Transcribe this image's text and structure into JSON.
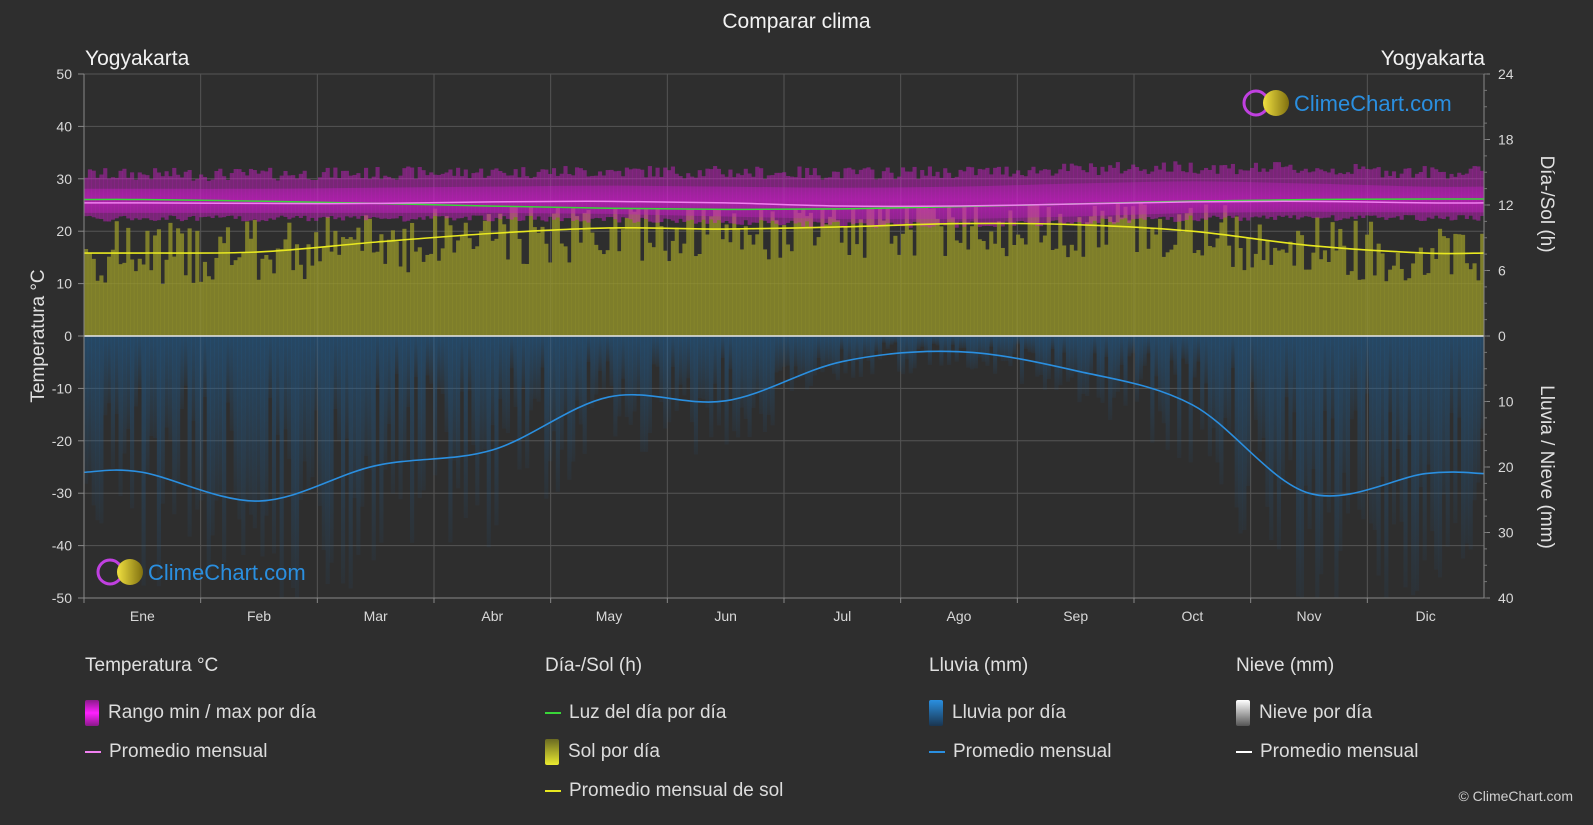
{
  "title": "Comparar clima",
  "location_left": "Yogyakarta",
  "location_right": "Yogyakarta",
  "axis_left_label": "Temperatura °C",
  "axis_right_top_label": "Día-/Sol (h)",
  "axis_right_bottom_label": "Lluvia / Nieve (mm)",
  "watermark": "ClimeChart.com",
  "copyright": "© ClimeChart.com",
  "colors": {
    "background": "#2e2e2e",
    "temp_range": "#d21ccf",
    "temp_avg": "#f080f0",
    "daylight": "#39d639",
    "sunshine_fill": "#9a9a2a",
    "sunshine_avg": "#e8e820",
    "rain_fill": "#1f5f96",
    "rain_avg": "#2a8fe0",
    "snow": "#ffffff",
    "brand": "#2a8fe0"
  },
  "legend": {
    "temperature": {
      "title": "Temperatura °C",
      "range": "Rango min / max por día",
      "avg": "Promedio mensual"
    },
    "sun": {
      "title": "Día-/Sol (h)",
      "daylight": "Luz del día por día",
      "sunshine": "Sol por día",
      "avg": "Promedio mensual de sol"
    },
    "rain": {
      "title": "Lluvia (mm)",
      "daily": "Lluvia por día",
      "avg": "Promedio mensual"
    },
    "snow": {
      "title": "Nieve (mm)",
      "daily": "Nieve por día",
      "avg": "Promedio mensual"
    }
  },
  "chart_data": {
    "type": "area",
    "categories": [
      "Ene",
      "Feb",
      "Mar",
      "Abr",
      "May",
      "Jun",
      "Jul",
      "Ago",
      "Sep",
      "Oct",
      "Nov",
      "Dic"
    ],
    "temp_axis": {
      "ylim": [
        -50,
        50
      ],
      "ticks": [
        50,
        40,
        30,
        20,
        10,
        0,
        -10,
        -20,
        -30,
        -40,
        -50
      ]
    },
    "sun_axis": {
      "ylim": [
        0,
        24
      ],
      "ticks": [
        24,
        18,
        12,
        6,
        0
      ]
    },
    "rain_axis": {
      "ylim": [
        0,
        40
      ],
      "ticks": [
        0,
        10,
        20,
        30,
        40
      ]
    },
    "series": [
      {
        "name": "Rango min / max por día",
        "unit": "°C",
        "min": [
          23.0,
          23.0,
          23.0,
          23.0,
          22.8,
          22.3,
          21.8,
          21.8,
          22.3,
          23.0,
          23.2,
          23.1
        ],
        "max": [
          29.6,
          29.6,
          29.8,
          30.0,
          30.2,
          30.0,
          29.8,
          30.0,
          30.6,
          31.0,
          30.6,
          30.0
        ]
      },
      {
        "name": "Promedio mensual",
        "unit": "°C",
        "values": [
          25.4,
          25.3,
          25.3,
          25.6,
          25.7,
          25.4,
          24.8,
          24.8,
          25.2,
          25.6,
          25.7,
          25.4
        ]
      },
      {
        "name": "Luz del día por día",
        "unit": "h",
        "values": [
          12.5,
          12.35,
          12.15,
          11.9,
          11.7,
          11.6,
          11.65,
          11.85,
          12.1,
          12.35,
          12.5,
          12.55
        ]
      },
      {
        "name": "Promedio mensual de sol",
        "unit": "h",
        "values": [
          7.6,
          7.7,
          8.6,
          9.4,
          9.9,
          9.8,
          10.0,
          10.3,
          10.2,
          9.6,
          8.3,
          7.6
        ]
      },
      {
        "name": "Promedio mensual",
        "unit": "mm",
        "kind": "rain",
        "values": [
          20.8,
          25.2,
          19.8,
          17.4,
          9.3,
          9.9,
          3.9,
          2.4,
          5.3,
          10.5,
          24.0,
          21.0
        ]
      }
    ]
  }
}
